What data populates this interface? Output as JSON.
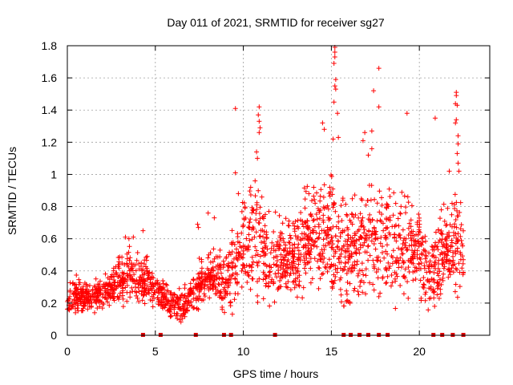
{
  "chart_data": {
    "type": "scatter",
    "title": "Day 011 of 2021, SRMTID for receiver sg27",
    "xlabel": "GPS time / hours",
    "ylabel": "SRMTID / TECUs",
    "xlim": [
      0,
      24
    ],
    "ylim": [
      0,
      1.8
    ],
    "xticks": [
      0,
      5,
      10,
      15,
      20
    ],
    "yticks": [
      0,
      0.2,
      0.4,
      0.6,
      0.8,
      1,
      1.2,
      1.4,
      1.6,
      1.8
    ],
    "xtick_labels": [
      "0",
      "5",
      "10",
      "15",
      "20"
    ],
    "ytick_labels": [
      "0",
      "0.2",
      "0.4",
      "0.6",
      "0.8",
      "1",
      "1.2",
      "1.4",
      "1.6",
      "1.8"
    ],
    "grid": true,
    "marker": "+",
    "color": "#ff0000",
    "zero_points_x": [
      4.3,
      5.3,
      7.3,
      8.9,
      9.3,
      11.8,
      15.7,
      16.1,
      16.6,
      17.1,
      17.7,
      18.2,
      20.8,
      21.3,
      21.9,
      22.5
    ],
    "envelope_x": [
      0,
      0.5,
      1,
      1.5,
      2,
      2.5,
      3,
      3.5,
      4,
      4.5,
      5,
      5.5,
      6,
      6.5,
      7,
      7.5,
      8,
      8.5,
      9,
      9.5,
      10,
      10.5,
      11,
      11.5,
      12,
      12.5,
      13,
      13.5,
      14,
      14.5,
      15,
      15.5,
      16,
      16.5,
      17,
      17.5,
      18,
      18.5,
      19,
      19.5,
      20,
      20.5,
      21,
      21.5,
      22,
      22.5
    ],
    "envelope_low": [
      0.12,
      0.12,
      0.12,
      0.13,
      0.15,
      0.15,
      0.16,
      0.16,
      0.16,
      0.16,
      0.16,
      0.12,
      0.07,
      0.07,
      0.12,
      0.14,
      0.15,
      0.12,
      0.06,
      0.05,
      0.12,
      0.2,
      0.15,
      0.1,
      0.15,
      0.2,
      0.18,
      0.22,
      0.24,
      0.18,
      0.14,
      0.06,
      0.06,
      0.14,
      0.2,
      0.18,
      0.14,
      0.1,
      0.16,
      0.2,
      0.18,
      0.06,
      0.12,
      0.2,
      0.16,
      0.2
    ],
    "envelope_high": [
      0.3,
      0.38,
      0.34,
      0.34,
      0.38,
      0.42,
      0.5,
      0.58,
      0.55,
      0.5,
      0.38,
      0.34,
      0.3,
      0.3,
      0.34,
      0.48,
      0.55,
      0.54,
      0.55,
      0.85,
      0.92,
      0.92,
      1.05,
      0.74,
      0.78,
      0.75,
      0.85,
      0.92,
      0.94,
      0.95,
      1.0,
      0.9,
      0.92,
      0.9,
      0.95,
      0.95,
      0.92,
      0.9,
      0.92,
      0.9,
      0.8,
      0.6,
      0.7,
      0.86,
      0.92,
      0.8
    ],
    "outliers": [
      {
        "x": 9.55,
        "y": 1.41
      },
      {
        "x": 9.55,
        "y": 1.01
      },
      {
        "x": 10.9,
        "y": 1.42
      },
      {
        "x": 10.85,
        "y": 1.37
      },
      {
        "x": 10.9,
        "y": 1.33
      },
      {
        "x": 10.95,
        "y": 1.29
      },
      {
        "x": 10.9,
        "y": 1.26
      },
      {
        "x": 10.75,
        "y": 1.14
      },
      {
        "x": 10.8,
        "y": 1.1
      },
      {
        "x": 15.2,
        "y": 1.79
      },
      {
        "x": 15.2,
        "y": 1.76
      },
      {
        "x": 15.2,
        "y": 1.73
      },
      {
        "x": 15.15,
        "y": 1.69
      },
      {
        "x": 15.25,
        "y": 1.59
      },
      {
        "x": 15.2,
        "y": 1.55
      },
      {
        "x": 15.25,
        "y": 1.53
      },
      {
        "x": 15.15,
        "y": 1.45
      },
      {
        "x": 15.35,
        "y": 1.38
      },
      {
        "x": 15.1,
        "y": 1.22
      },
      {
        "x": 15.4,
        "y": 1.23
      },
      {
        "x": 14.5,
        "y": 1.32
      },
      {
        "x": 14.6,
        "y": 1.28
      },
      {
        "x": 17.7,
        "y": 1.66
      },
      {
        "x": 17.7,
        "y": 1.42
      },
      {
        "x": 17.4,
        "y": 1.52
      },
      {
        "x": 16.9,
        "y": 1.26
      },
      {
        "x": 17.3,
        "y": 1.27
      },
      {
        "x": 17.3,
        "y": 1.16
      },
      {
        "x": 19.3,
        "y": 1.38
      },
      {
        "x": 20.9,
        "y": 1.35
      },
      {
        "x": 16.8,
        "y": 1.21
      },
      {
        "x": 17.1,
        "y": 1.12
      },
      {
        "x": 22.1,
        "y": 1.51
      },
      {
        "x": 22.1,
        "y": 1.49
      },
      {
        "x": 22.05,
        "y": 1.44
      },
      {
        "x": 22.15,
        "y": 1.43
      },
      {
        "x": 22.1,
        "y": 1.34
      },
      {
        "x": 22.05,
        "y": 1.32
      },
      {
        "x": 22.2,
        "y": 1.24
      },
      {
        "x": 22.2,
        "y": 1.19
      },
      {
        "x": 22.15,
        "y": 1.13
      },
      {
        "x": 22.2,
        "y": 1.07
      },
      {
        "x": 22.25,
        "y": 1.02
      },
      {
        "x": 21.7,
        "y": 1.02
      },
      {
        "x": 4.3,
        "y": 0.65
      },
      {
        "x": 3.75,
        "y": 0.61
      },
      {
        "x": 3.5,
        "y": 0.6
      },
      {
        "x": 3.3,
        "y": 0.61
      },
      {
        "x": 8.0,
        "y": 0.76
      },
      {
        "x": 8.35,
        "y": 0.73
      },
      {
        "x": 7.4,
        "y": 0.69
      },
      {
        "x": 7.45,
        "y": 0.67
      }
    ],
    "n_points": 2100
  }
}
